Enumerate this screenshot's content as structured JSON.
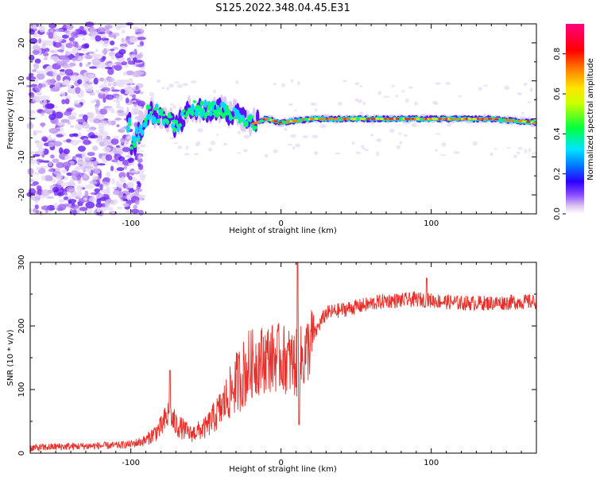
{
  "title": "S125.2022.348.04.45.E31",
  "chart_data": [
    {
      "type": "heatmap",
      "xlabel": "Height of straight line (km)",
      "ylabel": "Frequency (Hz)",
      "xlim": [
        -167,
        170
      ],
      "ylim": [
        -25,
        25
      ],
      "xticks": [
        -100,
        0,
        100
      ],
      "yticks": [
        -20,
        -10,
        0,
        10,
        20
      ],
      "colorbar": {
        "label": "Normalized spectral amplitude",
        "range": [
          0,
          0.95
        ],
        "ticks": [
          0.0,
          0.2,
          0.4,
          0.6,
          0.8
        ],
        "colormap": [
          "#ffffff",
          "#dcc8f0",
          "#8a4bff",
          "#2b00ff",
          "#0080ff",
          "#00e5ff",
          "#00ff40",
          "#c8ff00",
          "#ffe600",
          "#ff8000",
          "#ff0000",
          "#ff0080"
        ]
      },
      "description_points": {
        "noise_region_x": [
          -167,
          -100
        ],
        "frequency_track": [
          {
            "x": -100,
            "freq": -8.5
          },
          {
            "x": -95,
            "freq": -4
          },
          {
            "x": -88,
            "freq": 2
          },
          {
            "x": -80,
            "freq": 1
          },
          {
            "x": -70,
            "freq": -2
          },
          {
            "x": -60,
            "freq": 3
          },
          {
            "x": -50,
            "freq": 2
          },
          {
            "x": -40,
            "freq": 3
          },
          {
            "x": -30,
            "freq": 1
          },
          {
            "x": -20,
            "freq": -1.5
          },
          {
            "x": -10,
            "freq": 0
          },
          {
            "x": 0,
            "freq": -1
          },
          {
            "x": 20,
            "freq": 0
          },
          {
            "x": 60,
            "freq": 0
          },
          {
            "x": 100,
            "freq": 0
          },
          {
            "x": 140,
            "freq": 0
          },
          {
            "x": 170,
            "freq": -1
          }
        ]
      }
    },
    {
      "type": "line",
      "xlabel": "Height of straight line (km)",
      "ylabel": "SNR (10 * v/v)",
      "xlim": [
        -167,
        170
      ],
      "ylim": [
        0,
        300
      ],
      "xticks": [
        -100,
        0,
        100
      ],
      "yticks": [
        0,
        100,
        200,
        300
      ],
      "series": [
        {
          "name": "SNR",
          "color": "#e8302a",
          "x": [
            -167,
            -150,
            -130,
            -110,
            -100,
            -90,
            -80,
            -75,
            -70,
            -60,
            -50,
            -40,
            -30,
            -20,
            -10,
            0,
            10,
            15,
            20,
            25,
            30,
            40,
            50,
            60,
            70,
            80,
            90,
            100,
            110,
            120,
            140,
            160,
            170
          ],
          "values": [
            8,
            10,
            11,
            12,
            14,
            20,
            40,
            60,
            45,
            30,
            40,
            70,
            110,
            140,
            150,
            150,
            140,
            150,
            175,
            200,
            220,
            225,
            230,
            235,
            240,
            240,
            242,
            240,
            238,
            236,
            236,
            238,
            238
          ]
        }
      ]
    }
  ]
}
